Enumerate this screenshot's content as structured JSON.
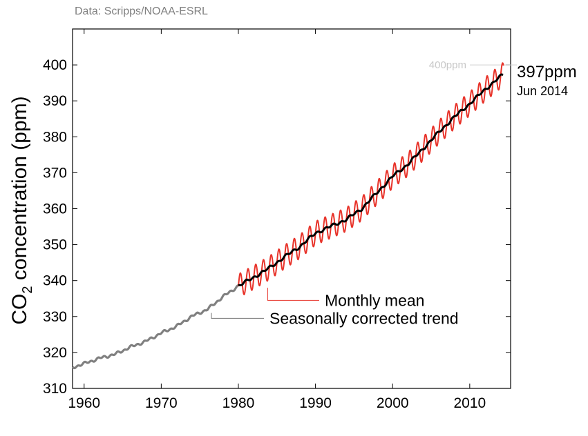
{
  "chart_data": {
    "type": "line",
    "source": "Data: Scripps/NOAA-ESRL",
    "ylabel": {
      "prefix": "CO",
      "subscript": "2",
      "suffix": " concentration (ppm)"
    },
    "xlabel": "",
    "xlim": [
      1958.5,
      2015.3
    ],
    "ylim": [
      310,
      410
    ],
    "x_ticks": [
      1960,
      1970,
      1980,
      1990,
      2000,
      2010
    ],
    "y_ticks": [
      310,
      320,
      330,
      340,
      350,
      360,
      370,
      380,
      390,
      400
    ],
    "reference_line": {
      "value": 400,
      "label": "400ppm"
    },
    "latest": {
      "value_label": "397ppm",
      "date_label": "Jun 2014",
      "value": 397
    },
    "series": [
      {
        "name": "Seasonally corrected trend",
        "color": "#808080",
        "x": [
          1958.5,
          1960,
          1962,
          1964,
          1966,
          1968,
          1970,
          1972,
          1974,
          1976,
          1978,
          1980
        ],
        "values": [
          315.8,
          316.9,
          318.4,
          319.5,
          321.5,
          323.1,
          325.4,
          327.3,
          330.1,
          332.0,
          335.5,
          338.5
        ]
      },
      {
        "name": "Seasonally corrected trend",
        "color": "#000000",
        "x": [
          1980,
          1982,
          1984,
          1986,
          1988,
          1990,
          1992,
          1994,
          1996,
          1998,
          2000,
          2002,
          2004,
          2006,
          2008,
          2010,
          2012,
          2014.4
        ],
        "values": [
          338.5,
          340.9,
          343.5,
          346.6,
          349.5,
          353.2,
          355.1,
          357.0,
          360.0,
          364.5,
          369.0,
          372.4,
          376.8,
          381.3,
          385.5,
          389.2,
          393.2,
          397.5
        ]
      },
      {
        "name": "Monthly mean",
        "color": "#e8332a",
        "seasonal_amplitude": 3.3,
        "x_start": 1980,
        "x_end": 2014.4
      }
    ],
    "annotations": [
      {
        "text": "Monthly mean",
        "color": "#e8332a",
        "at_x": 1983.8,
        "at_y": 338
      },
      {
        "text": "Seasonally corrected trend",
        "color": "#707070",
        "at_x": 1976.5,
        "at_y": 331
      }
    ]
  }
}
